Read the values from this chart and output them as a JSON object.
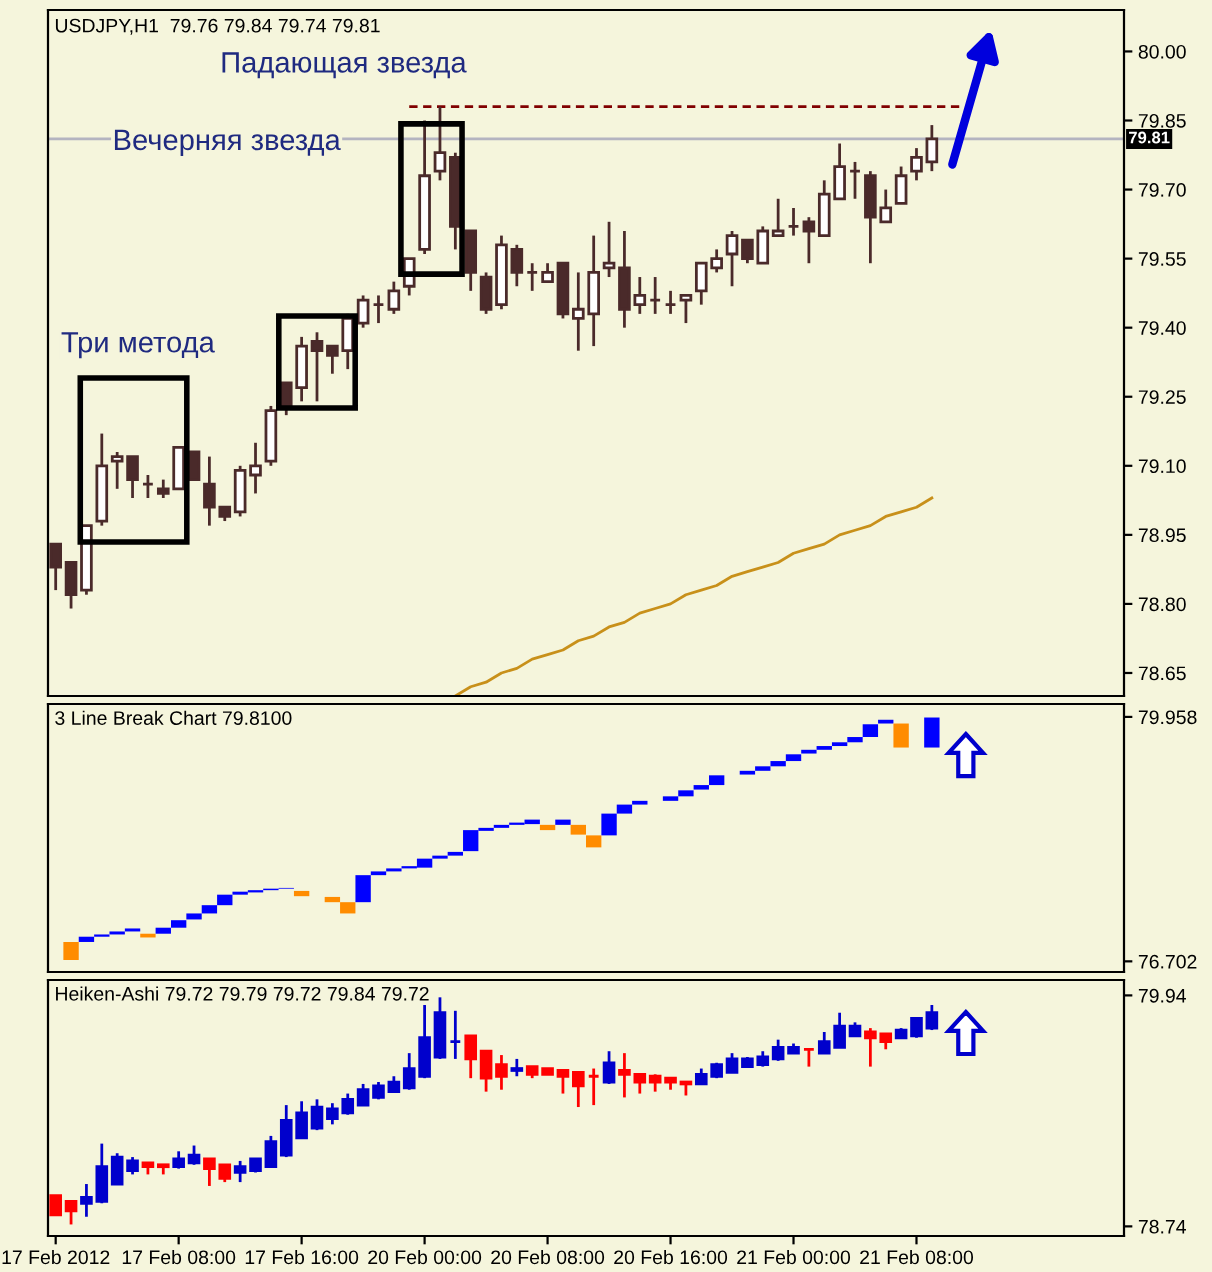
{
  "chart_data": [
    {
      "type": "candlestick",
      "categories": [
        null,
        null,
        null,
        null,
        null,
        null,
        null,
        null,
        null,
        null,
        null,
        null,
        null,
        null,
        null,
        null,
        null,
        null,
        null,
        null,
        null,
        null,
        null,
        null,
        null,
        null,
        null,
        null,
        null,
        null,
        null,
        null,
        null,
        null,
        null,
        null,
        null,
        null,
        null,
        null,
        null,
        null,
        null,
        null,
        null,
        null,
        null,
        null,
        null,
        null,
        null,
        null,
        null,
        null,
        null,
        null,
        null,
        null,
        null,
        null,
        null,
        null,
        null,
        null,
        null,
        null,
        null,
        null,
        null,
        null
      ],
      "ohlc": [
        [
          78.93,
          78.93,
          78.83,
          78.88
        ],
        [
          78.89,
          78.89,
          78.79,
          78.82
        ],
        [
          78.83,
          78.97,
          78.82,
          78.97
        ],
        [
          78.98,
          79.17,
          78.97,
          79.1
        ],
        [
          79.11,
          79.13,
          79.05,
          79.12
        ],
        [
          79.12,
          79.12,
          79.03,
          79.07
        ],
        [
          79.06,
          79.08,
          79.03,
          79.06
        ],
        [
          79.05,
          79.07,
          79.03,
          79.04
        ],
        [
          79.05,
          79.14,
          79.05,
          79.14
        ],
        [
          79.13,
          79.13,
          79.07,
          79.07
        ],
        [
          79.06,
          79.12,
          78.97,
          79.01
        ],
        [
          79.01,
          79.01,
          78.98,
          78.99
        ],
        [
          79.0,
          79.1,
          78.99,
          79.09
        ],
        [
          79.08,
          79.15,
          79.04,
          79.1
        ],
        [
          79.11,
          79.23,
          79.1,
          79.22
        ],
        [
          79.28,
          79.28,
          79.21,
          79.23
        ],
        [
          79.27,
          79.38,
          79.24,
          79.36
        ],
        [
          79.37,
          79.39,
          79.24,
          79.35
        ],
        [
          79.36,
          79.36,
          79.3,
          79.34
        ],
        [
          79.35,
          79.43,
          79.31,
          79.42
        ],
        [
          79.41,
          79.47,
          79.4,
          79.46
        ],
        [
          79.45,
          79.47,
          79.41,
          79.45
        ],
        [
          79.44,
          79.5,
          79.43,
          79.48
        ],
        [
          79.49,
          79.55,
          79.47,
          79.55
        ],
        [
          79.57,
          79.85,
          79.56,
          79.73
        ],
        [
          79.74,
          79.88,
          79.72,
          79.78
        ],
        [
          79.77,
          79.78,
          79.57,
          79.62
        ],
        [
          79.61,
          79.61,
          79.48,
          79.52
        ],
        [
          79.51,
          79.52,
          79.43,
          79.44
        ],
        [
          79.45,
          79.6,
          79.44,
          79.58
        ],
        [
          79.57,
          79.58,
          79.49,
          79.52
        ],
        [
          79.52,
          79.54,
          79.48,
          79.52
        ],
        [
          79.5,
          79.54,
          79.5,
          79.52
        ],
        [
          79.54,
          79.54,
          79.42,
          79.43
        ],
        [
          79.42,
          79.52,
          79.35,
          79.44
        ],
        [
          79.43,
          79.6,
          79.36,
          79.52
        ],
        [
          79.53,
          79.63,
          79.51,
          79.54
        ],
        [
          79.53,
          79.61,
          79.4,
          79.44
        ],
        [
          79.45,
          79.51,
          79.43,
          79.47
        ],
        [
          79.46,
          79.51,
          79.43,
          79.46
        ],
        [
          79.45,
          79.48,
          79.43,
          79.45
        ],
        [
          79.46,
          79.47,
          79.41,
          79.47
        ],
        [
          79.48,
          79.54,
          79.45,
          79.54
        ],
        [
          79.53,
          79.57,
          79.52,
          79.55
        ],
        [
          79.56,
          79.61,
          79.49,
          79.6
        ],
        [
          79.59,
          79.59,
          79.54,
          79.55
        ],
        [
          79.54,
          79.62,
          79.54,
          79.61
        ],
        [
          79.6,
          79.68,
          79.6,
          79.61
        ],
        [
          79.62,
          79.66,
          79.6,
          79.62
        ],
        [
          79.63,
          79.64,
          79.54,
          79.61
        ],
        [
          79.6,
          79.72,
          79.6,
          79.69
        ],
        [
          79.68,
          79.8,
          79.68,
          79.75
        ],
        [
          79.74,
          79.76,
          79.68,
          79.74
        ],
        [
          79.73,
          79.74,
          79.54,
          79.64
        ],
        [
          79.63,
          79.7,
          79.63,
          79.66
        ],
        [
          79.67,
          79.75,
          79.67,
          79.73
        ],
        [
          79.74,
          79.79,
          79.72,
          79.77
        ],
        [
          79.76,
          79.84,
          79.74,
          79.81
        ],
        null,
        null,
        null,
        null,
        null,
        null,
        null,
        null,
        null,
        null,
        null,
        null
      ],
      "colors": [
        "#4a2a2a",
        "#4a2a2a",
        "#ffffff",
        "#ffffff",
        "#ffffff",
        "#4a2a2a",
        "#4a2a2a",
        "#4a2a2a",
        "#ffffff",
        "#4a2a2a",
        "#4a2a2a",
        "#4a2a2a",
        "#ffffff",
        "#ffffff",
        "#ffffff",
        "#4a2a2a",
        "#ffffff",
        "#4a2a2a",
        "#4a2a2a",
        "#ffffff",
        "#ffffff",
        "#4a2a2a",
        "#ffffff",
        "#ffffff",
        "#ffffff",
        "#ffffff",
        "#4a2a2a",
        "#4a2a2a",
        "#4a2a2a",
        "#ffffff",
        "#4a2a2a",
        "#4a2a2a",
        "#ffffff",
        "#4a2a2a",
        "#ffffff",
        "#ffffff",
        "#ffffff",
        "#4a2a2a",
        "#ffffff",
        "#4a2a2a",
        "#4a2a2a",
        "#ffffff",
        "#ffffff",
        "#ffffff",
        "#ffffff",
        "#4a2a2a",
        "#ffffff",
        "#ffffff",
        "#4a2a2a",
        "#4a2a2a",
        "#ffffff",
        "#ffffff",
        "#4a2a2a",
        "#4a2a2a",
        "#ffffff",
        "#ffffff",
        "#ffffff",
        "#ffffff",
        null,
        null,
        null,
        null,
        null,
        null,
        null,
        null,
        null,
        null,
        null,
        null
      ],
      "series": [
        {
          "type": "line",
          "color": "#c8901a",
          "values": [
            null,
            null,
            null,
            null,
            null,
            null,
            null,
            null,
            null,
            null,
            null,
            null,
            null,
            null,
            null,
            null,
            null,
            null,
            null,
            null,
            null,
            null,
            null,
            null,
            null,
            null,
            78.6,
            78.62,
            78.63,
            78.65,
            78.66,
            78.68,
            78.69,
            78.7,
            78.72,
            78.73,
            78.75,
            78.76,
            78.78,
            78.79,
            78.8,
            78.82,
            78.83,
            78.84,
            78.86,
            78.87,
            78.88,
            78.89,
            78.91,
            78.92,
            78.93,
            78.95,
            78.96,
            78.97,
            78.99,
            79.0,
            79.01,
            79.03,
            null,
            null,
            null,
            null,
            null,
            null,
            null,
            null,
            null,
            null,
            null,
            null
          ]
        },
        {
          "type": "line",
          "color": "#800000",
          "line_style": "dashed",
          "values": [
            null,
            null,
            null,
            null,
            null,
            null,
            null,
            null,
            null,
            null,
            null,
            null,
            null,
            null,
            null,
            null,
            null,
            null,
            null,
            null,
            null,
            null,
            null,
            79.88,
            79.88,
            79.88,
            79.88,
            79.88,
            79.88,
            79.88,
            79.88,
            79.88,
            79.88,
            79.88,
            79.88,
            79.88,
            79.88,
            79.88,
            79.88,
            79.88,
            79.88,
            79.88,
            79.88,
            79.88,
            79.88,
            79.88,
            79.88,
            79.88,
            79.88,
            79.88,
            79.88,
            79.88,
            79.88,
            79.88,
            79.88,
            79.88,
            79.88,
            79.88,
            79.88,
            79.88,
            null,
            null,
            null,
            null,
            null,
            null,
            null,
            null,
            null,
            null
          ]
        }
      ],
      "ref_lines": [
        {
          "axis": "y",
          "value": 79.81,
          "label": "79.81",
          "color": "#b4b4c0"
        }
      ],
      "ylim": [
        78.6,
        80.09
      ],
      "yticks": [
        {
          "value": 80.0,
          "label": "80.00"
        },
        79.85,
        {
          "value": 79.7,
          "label": "79.70"
        },
        79.55,
        {
          "value": 79.4,
          "label": "79.40"
        },
        79.25,
        {
          "value": 79.1,
          "label": "79.10"
        },
        78.95,
        {
          "value": 78.8,
          "label": "78.80"
        },
        78.65
      ],
      "annotations": [
        "USDJPY,H1  79.76 79.84 79.74 79.81",
        "Падающая звезда",
        "Вечерняя звезда",
        "Три метода"
      ],
      "tick_labels": "y",
      "grid": false
    },
    {
      "type": "bar",
      "categories": [
        null,
        null,
        null,
        null,
        null,
        null,
        null,
        null,
        null,
        null,
        null,
        null,
        null,
        null,
        null,
        null,
        null,
        null,
        null,
        null,
        null,
        null,
        null,
        null,
        null,
        null,
        null,
        null,
        null,
        null,
        null,
        null,
        null,
        null,
        null,
        null,
        null,
        null,
        null,
        null,
        null,
        null,
        null,
        null,
        null,
        null,
        null,
        null,
        null,
        null,
        null,
        null,
        null,
        null,
        null,
        null,
        null,
        null,
        null,
        null,
        null,
        null,
        null,
        null,
        null,
        null,
        null,
        null,
        null,
        null
      ],
      "base": [
        null,
        76.72,
        76.96,
        77.03,
        77.06,
        77.1,
        77.02,
        77.07,
        77.15,
        77.26,
        77.34,
        77.45,
        77.59,
        77.62,
        77.65,
        77.67,
        77.57,
        null,
        77.49,
        77.34,
        77.49,
        77.85,
        77.9,
        77.94,
        77.95,
        78.07,
        78.11,
        78.17,
        78.44,
        78.48,
        78.52,
        78.53,
        78.45,
        78.52,
        78.39,
        78.22,
        78.38,
        78.67,
        78.79,
        null,
        78.84,
        78.9,
        78.99,
        79.05,
        null,
        79.19,
        79.24,
        79.3,
        79.37,
        79.47,
        79.52,
        79.57,
        79.62,
        79.69,
        79.87,
        79.55,
        null,
        79.55,
        null,
        null,
        null,
        null,
        null,
        null,
        null,
        null,
        null,
        null,
        null,
        null
      ],
      "values": [
        null,
        0.24,
        0.07,
        0.03,
        0.04,
        0.04,
        0.05,
        0.08,
        0.1,
        0.08,
        0.11,
        0.14,
        0.04,
        0.03,
        0.02,
        0.01,
        0.07,
        null,
        0.07,
        0.15,
        0.36,
        0.05,
        0.04,
        0.03,
        0.12,
        0.04,
        0.05,
        0.28,
        0.04,
        0.04,
        0.03,
        0.06,
        0.07,
        0.07,
        0.13,
        0.16,
        0.29,
        0.12,
        0.05,
        null,
        0.06,
        0.08,
        0.06,
        0.13,
        null,
        0.05,
        0.06,
        0.07,
        0.09,
        0.05,
        0.05,
        0.05,
        0.07,
        0.17,
        0.05,
        0.32,
        null,
        0.4,
        null,
        null,
        null,
        null,
        null,
        null,
        null,
        null,
        null,
        null,
        null,
        null
      ],
      "colors": [
        null,
        "#ff8c00",
        "#0000ff",
        "#0000ff",
        "#0000ff",
        "#0000ff",
        "#ff8c00",
        "#0000ff",
        "#0000ff",
        "#0000ff",
        "#0000ff",
        "#0000ff",
        "#0000ff",
        "#0000ff",
        "#0000ff",
        "#0000ff",
        "#ff8c00",
        null,
        "#ff8c00",
        "#ff8c00",
        "#0000ff",
        "#0000ff",
        "#0000ff",
        "#0000ff",
        "#0000ff",
        "#0000ff",
        "#0000ff",
        "#0000ff",
        "#0000ff",
        "#0000ff",
        "#0000ff",
        "#0000ff",
        "#ff8c00",
        "#0000ff",
        "#ff8c00",
        "#ff8c00",
        "#0000ff",
        "#0000ff",
        "#0000ff",
        null,
        "#0000ff",
        "#0000ff",
        "#0000ff",
        "#0000ff",
        null,
        "#0000ff",
        "#0000ff",
        "#0000ff",
        "#0000ff",
        "#0000ff",
        "#0000ff",
        "#0000ff",
        "#0000ff",
        "#0000ff",
        "#0000ff",
        "#ff8c00",
        null,
        "#0000ff",
        null,
        null,
        null,
        null,
        null,
        null,
        null,
        null,
        null,
        null,
        null,
        null
      ],
      "ylim": [
        76.56,
        80.13
      ],
      "yticks": [
        79.958,
        76.702
      ],
      "annotations": [
        "3 Line Break Chart 79.8100"
      ],
      "tick_labels": "y",
      "grid": false
    },
    {
      "type": "candlestick",
      "categories": [
        "17 Feb 2012",
        null,
        null,
        null,
        null,
        null,
        null,
        null,
        "17 Feb 08:00",
        null,
        null,
        null,
        null,
        null,
        null,
        null,
        "17 Feb 16:00",
        null,
        null,
        null,
        null,
        null,
        null,
        null,
        "20 Feb 00:00",
        null,
        null,
        null,
        null,
        null,
        null,
        null,
        "20 Feb 08:00",
        null,
        null,
        null,
        null,
        null,
        null,
        null,
        "20 Feb 16:00",
        null,
        null,
        null,
        null,
        null,
        null,
        null,
        "21 Feb 00:00",
        null,
        null,
        null,
        null,
        null,
        null,
        null,
        "21 Feb 08:00",
        null,
        null,
        null,
        null,
        null,
        null,
        null,
        null,
        null,
        null,
        null,
        null,
        null
      ],
      "ohlc": [
        [
          78.9,
          78.9,
          78.8,
          78.8
        ],
        [
          78.87,
          78.87,
          78.75,
          78.82
        ],
        [
          78.86,
          78.96,
          78.79,
          78.89
        ],
        [
          78.87,
          79.17,
          78.86,
          79.05
        ],
        [
          78.96,
          79.12,
          78.96,
          79.1
        ],
        [
          79.03,
          79.1,
          79.01,
          79.08
        ],
        [
          79.07,
          79.07,
          79.01,
          79.05
        ],
        [
          79.06,
          79.06,
          79.01,
          79.05
        ],
        [
          79.05,
          79.13,
          79.04,
          79.09
        ],
        [
          79.07,
          79.16,
          79.06,
          79.11
        ],
        [
          79.09,
          79.09,
          78.95,
          79.04
        ],
        [
          79.06,
          79.06,
          78.97,
          78.99
        ],
        [
          79.02,
          79.08,
          78.97,
          79.05
        ],
        [
          79.03,
          79.09,
          79.02,
          79.09
        ],
        [
          79.05,
          79.21,
          79.05,
          79.18
        ],
        [
          79.11,
          79.37,
          79.1,
          79.29
        ],
        [
          79.2,
          79.39,
          79.2,
          79.33
        ],
        [
          79.25,
          79.4,
          79.24,
          79.36
        ],
        [
          79.3,
          79.38,
          79.27,
          79.35
        ],
        [
          79.33,
          79.43,
          79.32,
          79.4
        ],
        [
          79.37,
          79.48,
          79.37,
          79.45
        ],
        [
          79.41,
          79.49,
          79.4,
          79.47
        ],
        [
          79.44,
          79.52,
          79.44,
          79.49
        ],
        [
          79.46,
          79.64,
          79.45,
          79.56
        ],
        [
          79.52,
          79.89,
          79.51,
          79.72
        ],
        [
          79.62,
          79.93,
          79.61,
          79.85
        ],
        [
          79.7,
          79.86,
          79.61,
          79.7
        ],
        [
          79.73,
          79.73,
          79.51,
          79.61
        ],
        [
          79.65,
          79.65,
          79.44,
          79.51
        ],
        [
          79.58,
          79.63,
          79.45,
          79.52
        ],
        [
          79.55,
          79.61,
          79.52,
          79.56
        ],
        [
          79.57,
          79.57,
          79.51,
          79.53
        ],
        [
          79.56,
          79.56,
          79.53,
          79.53
        ],
        [
          79.55,
          79.55,
          79.43,
          79.52
        ],
        [
          79.54,
          79.54,
          79.36,
          79.47
        ],
        [
          79.52,
          79.56,
          79.37,
          79.52
        ],
        [
          79.49,
          79.65,
          79.48,
          79.59
        ],
        [
          79.55,
          79.64,
          79.41,
          79.53
        ],
        [
          79.53,
          79.53,
          79.43,
          79.49
        ],
        [
          79.52,
          79.53,
          79.44,
          79.49
        ],
        [
          79.51,
          79.51,
          79.45,
          79.49
        ],
        [
          79.49,
          79.49,
          79.42,
          79.48
        ],
        [
          79.48,
          79.56,
          79.48,
          79.53
        ],
        [
          79.52,
          79.59,
          79.51,
          79.58
        ],
        [
          79.54,
          79.64,
          79.54,
          79.61
        ],
        [
          79.57,
          79.62,
          79.57,
          79.61
        ],
        [
          79.58,
          79.65,
          79.57,
          79.62
        ],
        [
          79.61,
          79.71,
          79.6,
          79.67
        ],
        [
          79.64,
          79.69,
          79.64,
          79.67
        ],
        [
          79.66,
          79.66,
          79.57,
          79.66
        ],
        [
          79.64,
          79.75,
          79.64,
          79.7
        ],
        [
          79.67,
          79.85,
          79.67,
          79.78
        ],
        [
          79.73,
          79.8,
          79.73,
          79.78
        ],
        [
          79.75,
          79.77,
          79.57,
          79.72
        ],
        [
          79.74,
          79.74,
          79.66,
          79.7
        ],
        [
          79.72,
          79.77,
          79.72,
          79.76
        ],
        [
          79.73,
          79.82,
          79.72,
          79.82
        ],
        [
          79.77,
          79.89,
          79.76,
          79.85
        ],
        null,
        null,
        null,
        null,
        null,
        null,
        null,
        null,
        null,
        null,
        null,
        null
      ],
      "colors": [
        "#ff0000",
        "#ff0000",
        "#0000cc",
        "#0000cc",
        "#0000cc",
        "#0000cc",
        "#ff0000",
        "#ff0000",
        "#0000cc",
        "#0000cc",
        "#ff0000",
        "#ff0000",
        "#0000cc",
        "#0000cc",
        "#0000cc",
        "#0000cc",
        "#0000cc",
        "#0000cc",
        "#0000cc",
        "#0000cc",
        "#0000cc",
        "#0000cc",
        "#0000cc",
        "#0000cc",
        "#0000cc",
        "#0000cc",
        "#0000cc",
        "#ff0000",
        "#ff0000",
        "#ff0000",
        "#0000cc",
        "#ff0000",
        "#ff0000",
        "#ff0000",
        "#ff0000",
        "#ff0000",
        "#0000cc",
        "#ff0000",
        "#ff0000",
        "#ff0000",
        "#ff0000",
        "#ff0000",
        "#0000cc",
        "#0000cc",
        "#0000cc",
        "#0000cc",
        "#0000cc",
        "#0000cc",
        "#0000cc",
        "#ff0000",
        "#0000cc",
        "#0000cc",
        "#0000cc",
        "#ff0000",
        "#ff0000",
        "#0000cc",
        "#0000cc",
        "#0000cc",
        null,
        null,
        null,
        null,
        null,
        null,
        null,
        null,
        null,
        null,
        null,
        null
      ],
      "ylim": [
        78.69,
        80.02
      ],
      "yticks": [
        79.94,
        78.74
      ],
      "annotations": [
        "Heiken-Ashi 79.72 79.79 79.72 79.84 79.72"
      ],
      "grid": false
    }
  ]
}
